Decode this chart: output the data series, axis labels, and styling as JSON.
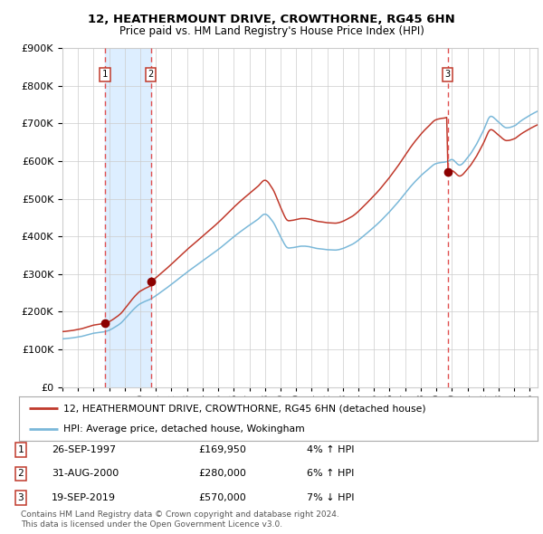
{
  "title1": "12, HEATHERMOUNT DRIVE, CROWTHORNE, RG45 6HN",
  "title2": "Price paid vs. HM Land Registry's House Price Index (HPI)",
  "legend_line1": "12, HEATHERMOUNT DRIVE, CROWTHORNE, RG45 6HN (detached house)",
  "legend_line2": "HPI: Average price, detached house, Wokingham",
  "transaction1": {
    "label": "1",
    "date": "26-SEP-1997",
    "price": 169950,
    "hpi_pct": "4% ↑ HPI",
    "year": 1997.74
  },
  "transaction2": {
    "label": "2",
    "date": "31-AUG-2000",
    "price": 280000,
    "hpi_pct": "6% ↑ HPI",
    "year": 2000.67
  },
  "transaction3": {
    "label": "3",
    "date": "19-SEP-2019",
    "price": 570000,
    "hpi_pct": "7% ↓ HPI",
    "year": 2019.72
  },
  "footnote1": "Contains HM Land Registry data © Crown copyright and database right 2024.",
  "footnote2": "This data is licensed under the Open Government Licence v3.0.",
  "hpi_color": "#7ab8d9",
  "price_color": "#c0392b",
  "dot_color": "#8b0000",
  "vline_color": "#e05050",
  "shade_color": "#ddeeff",
  "background_color": "#ffffff",
  "grid_color": "#cccccc",
  "ylim": [
    0,
    900000
  ],
  "xlim_start": 1995.0,
  "xlim_end": 2025.5
}
